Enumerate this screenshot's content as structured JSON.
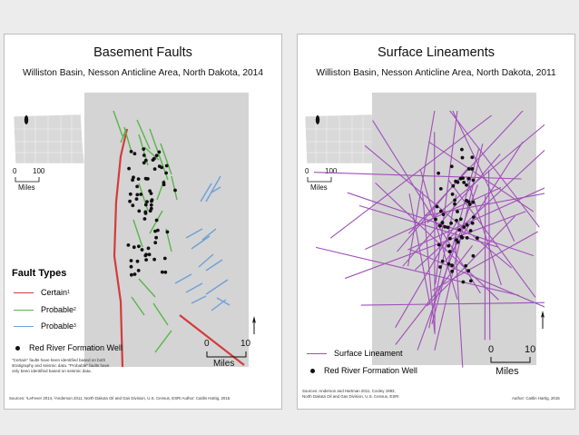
{
  "left": {
    "title": "Basement Faults",
    "subtitle": "Williston Basin, Nesson Anticline Area, North Dakota, 2014",
    "inset_scale": {
      "zero": "0",
      "max": "100",
      "unit": "Miles"
    },
    "legend": {
      "title": "Fault Types",
      "items": [
        {
          "label": "Certain",
          "sup": "1",
          "color": "#d43b3b"
        },
        {
          "label": "Probable",
          "sup": "2",
          "color": "#58b54a"
        },
        {
          "label": "Probable",
          "sup": "3",
          "color": "#6fa0d8"
        }
      ],
      "well": "Red River Formation Well"
    },
    "scale": {
      "zero": "0",
      "max": "10",
      "unit": "Miles"
    },
    "note": "\"Certain\" faults have been identified based on both stratigraphy and seismic data. \"Probable\" faults have only been identified based on seismic data.",
    "source": "Sources: ¹LeFever 2014, ²Anderson 2011, North Dakota Oil and Gas Division, U.S. Census, ESRI     Author: Caitlin Hartig, 2015"
  },
  "right": {
    "title": "Surface Lineaments",
    "subtitle": "Williston Basin, Nesson Anticline Area, North Dakota, 2011",
    "inset_scale": {
      "zero": "0",
      "max": "100",
      "unit": "Miles"
    },
    "legend": {
      "lineament": "Surface Lineament",
      "lineament_color": "#a050b8",
      "well": "Red River Formation Well"
    },
    "scale": {
      "zero": "0",
      "max": "10",
      "unit": "Miles"
    },
    "source_1": "Sources: Anderson and Hartman 2011, Cooley 1983,",
    "source_2": "North Dakota Oil and Gas Division, U.S. Census, ESRI",
    "author": "Author: Caitlin Hartig, 2015"
  }
}
